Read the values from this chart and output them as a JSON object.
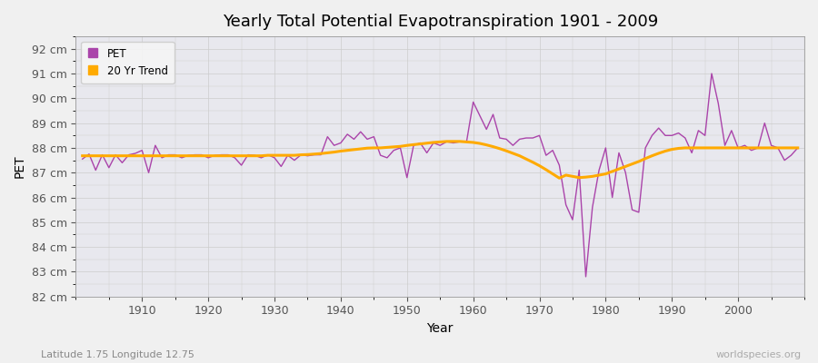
{
  "title": "Yearly Total Potential Evapotranspiration 1901 - 2009",
  "xlabel": "Year",
  "ylabel": "PET",
  "subtitle_left": "Latitude 1.75 Longitude 12.75",
  "subtitle_right": "worldspecies.org",
  "pet_color": "#aa44aa",
  "trend_color": "#ffaa00",
  "fig_bg_color": "#f0f0f0",
  "plot_bg_color": "#e8e8ee",
  "years": [
    1901,
    1902,
    1903,
    1904,
    1905,
    1906,
    1907,
    1908,
    1909,
    1910,
    1911,
    1912,
    1913,
    1914,
    1915,
    1916,
    1917,
    1918,
    1919,
    1920,
    1921,
    1922,
    1923,
    1924,
    1925,
    1926,
    1927,
    1928,
    1929,
    1930,
    1931,
    1932,
    1933,
    1934,
    1935,
    1936,
    1937,
    1938,
    1939,
    1940,
    1941,
    1942,
    1943,
    1944,
    1945,
    1946,
    1947,
    1948,
    1949,
    1950,
    1951,
    1952,
    1953,
    1954,
    1955,
    1956,
    1957,
    1958,
    1959,
    1960,
    1961,
    1962,
    1963,
    1964,
    1965,
    1966,
    1967,
    1968,
    1969,
    1970,
    1971,
    1972,
    1973,
    1974,
    1975,
    1976,
    1977,
    1978,
    1979,
    1980,
    1981,
    1982,
    1983,
    1984,
    1985,
    1986,
    1987,
    1988,
    1989,
    1990,
    1991,
    1992,
    1993,
    1994,
    1995,
    1996,
    1997,
    1998,
    1999,
    2000,
    2001,
    2002,
    2003,
    2004,
    2005,
    2006,
    2007,
    2008,
    2009
  ],
  "pet_values": [
    87.55,
    87.75,
    87.1,
    87.72,
    87.2,
    87.72,
    87.4,
    87.72,
    87.78,
    87.9,
    87.0,
    88.1,
    87.6,
    87.72,
    87.72,
    87.6,
    87.7,
    87.72,
    87.72,
    87.6,
    87.7,
    87.72,
    87.72,
    87.6,
    87.3,
    87.72,
    87.7,
    87.6,
    87.72,
    87.6,
    87.25,
    87.7,
    87.5,
    87.72,
    87.68,
    87.72,
    87.72,
    88.45,
    88.1,
    88.2,
    88.55,
    88.35,
    88.65,
    88.35,
    88.45,
    87.7,
    87.6,
    87.9,
    88.0,
    86.8,
    88.1,
    88.2,
    87.8,
    88.2,
    88.1,
    88.25,
    88.2,
    88.25,
    88.25,
    89.85,
    89.3,
    88.75,
    89.35,
    88.4,
    88.35,
    88.1,
    88.35,
    88.4,
    88.4,
    88.5,
    87.7,
    87.9,
    87.3,
    85.7,
    85.1,
    87.1,
    82.8,
    85.6,
    87.1,
    88.0,
    86.0,
    87.8,
    87.0,
    85.5,
    85.4,
    88.0,
    88.5,
    88.8,
    88.5,
    88.5,
    88.6,
    88.4,
    87.8,
    88.7,
    88.5,
    91.0,
    89.8,
    88.1,
    88.7,
    88.0,
    88.1,
    87.9,
    88.0,
    89.0,
    88.1,
    88.0,
    87.5,
    87.7,
    88.0
  ],
  "trend_values": [
    87.68,
    87.68,
    87.68,
    87.68,
    87.68,
    87.68,
    87.68,
    87.68,
    87.68,
    87.68,
    87.68,
    87.68,
    87.68,
    87.68,
    87.68,
    87.68,
    87.68,
    87.68,
    87.68,
    87.68,
    87.68,
    87.68,
    87.68,
    87.68,
    87.68,
    87.68,
    87.68,
    87.68,
    87.7,
    87.7,
    87.7,
    87.7,
    87.7,
    87.72,
    87.73,
    87.75,
    87.77,
    87.8,
    87.83,
    87.87,
    87.9,
    87.93,
    87.96,
    87.99,
    88.0,
    88.0,
    88.02,
    88.04,
    88.06,
    88.1,
    88.13,
    88.16,
    88.19,
    88.22,
    88.24,
    88.26,
    88.26,
    88.26,
    88.24,
    88.22,
    88.18,
    88.12,
    88.05,
    87.97,
    87.88,
    87.78,
    87.68,
    87.55,
    87.42,
    87.28,
    87.12,
    86.95,
    86.78,
    86.9,
    86.85,
    86.8,
    86.82,
    86.85,
    86.9,
    86.95,
    87.05,
    87.15,
    87.25,
    87.35,
    87.45,
    87.57,
    87.68,
    87.78,
    87.87,
    87.94,
    87.98,
    88.0,
    88.0,
    88.0,
    88.0,
    88.0,
    88.0,
    88.0,
    88.0,
    88.0,
    88.0,
    88.0,
    88.0,
    88.0,
    88.0,
    88.0,
    88.0,
    88.0,
    88.0
  ],
  "ylim": [
    82.0,
    92.5
  ],
  "yticks": [
    82,
    83,
    84,
    85,
    86,
    87,
    88,
    89,
    90,
    91,
    92
  ],
  "grid_color": "#cccccc",
  "legend_loc": "upper left"
}
